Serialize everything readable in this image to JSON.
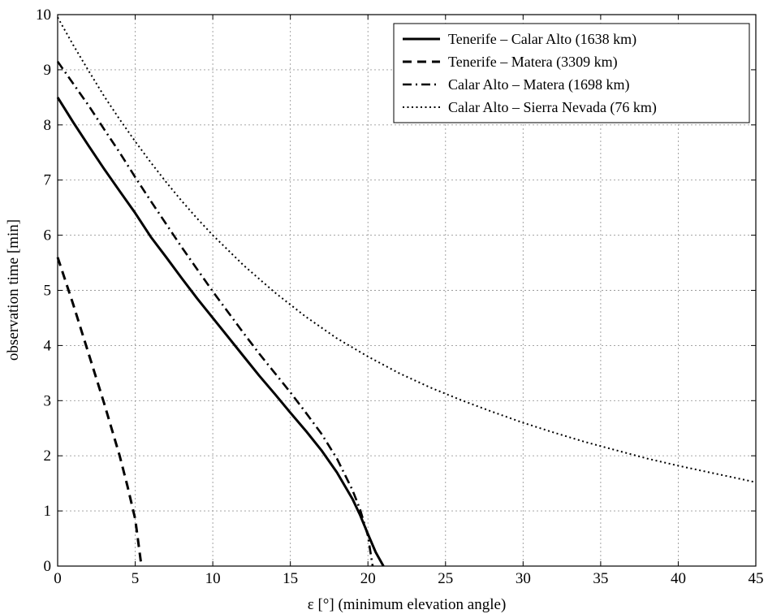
{
  "chart_data": {
    "type": "line",
    "title": "",
    "xlabel": "ε [°] (minimum elevation angle)",
    "ylabel": "observation time [min]",
    "xlim": [
      0,
      45
    ],
    "ylim": [
      0,
      10
    ],
    "xticks": [
      0,
      5,
      10,
      15,
      20,
      25,
      30,
      35,
      40,
      45
    ],
    "yticks": [
      0,
      1,
      2,
      3,
      4,
      5,
      6,
      7,
      8,
      9,
      10
    ],
    "grid": true,
    "legend_position": "top-right",
    "series": [
      {
        "name": "Tenerife – Calar Alto (1638 km)",
        "style": "solid",
        "color": "#000000",
        "x": [
          0,
          1,
          2,
          3,
          4,
          5,
          6,
          7,
          8,
          9,
          10,
          11,
          12,
          13,
          14,
          15,
          16,
          17,
          18,
          19,
          19.5,
          20,
          20.5,
          21
        ],
        "y": [
          8.5,
          8.05,
          7.62,
          7.2,
          6.8,
          6.4,
          5.97,
          5.6,
          5.22,
          4.85,
          4.5,
          4.15,
          3.8,
          3.45,
          3.12,
          2.78,
          2.45,
          2.1,
          1.7,
          1.22,
          0.92,
          0.58,
          0.25,
          0.0
        ]
      },
      {
        "name": "Tenerife – Matera (3309 km)",
        "style": "dashed",
        "color": "#000000",
        "x": [
          0,
          1,
          2,
          3,
          4,
          4.5,
          5,
          5.4
        ],
        "y": [
          5.6,
          4.75,
          3.85,
          2.95,
          2.0,
          1.45,
          0.85,
          0.0
        ]
      },
      {
        "name": "Calar Alto – Matera (1698 km)",
        "style": "dashdot",
        "color": "#000000",
        "x": [
          0,
          1,
          2,
          3,
          4,
          5,
          6,
          7,
          8,
          9,
          10,
          11,
          12,
          13,
          14,
          15,
          16,
          17,
          18,
          19,
          19.5,
          20,
          20.3
        ],
        "y": [
          9.15,
          8.75,
          8.35,
          7.92,
          7.5,
          7.05,
          6.62,
          6.2,
          5.78,
          5.38,
          4.98,
          4.6,
          4.22,
          3.85,
          3.5,
          3.15,
          2.78,
          2.4,
          1.95,
          1.38,
          1.02,
          0.55,
          0.0
        ]
      },
      {
        "name": "Calar Alto – Sierra Nevada (76 km)",
        "style": "dotted",
        "color": "#000000",
        "x": [
          0,
          1,
          2,
          3,
          4,
          5,
          6,
          7,
          8,
          9,
          10,
          12,
          14,
          16,
          18,
          20,
          22,
          24,
          26,
          28,
          30,
          32,
          34,
          36,
          38,
          40,
          42,
          44,
          45
        ],
        "y": [
          9.95,
          9.45,
          8.98,
          8.52,
          8.1,
          7.7,
          7.32,
          6.96,
          6.62,
          6.3,
          6.0,
          5.45,
          4.96,
          4.52,
          4.13,
          3.8,
          3.5,
          3.24,
          3.01,
          2.8,
          2.6,
          2.42,
          2.25,
          2.1,
          1.95,
          1.82,
          1.7,
          1.58,
          1.52
        ]
      }
    ]
  }
}
